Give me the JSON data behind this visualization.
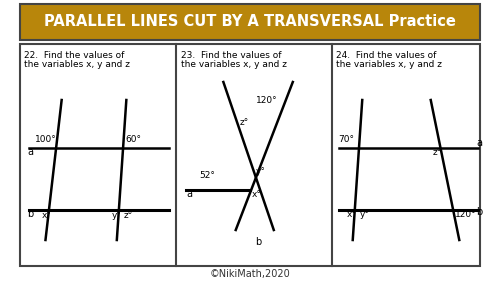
{
  "title": "PARALLEL LINES CUT BY A TRANSVERSAL Practice",
  "title_bg": "#B8860B",
  "title_fg": "white",
  "outer_bg": "white",
  "panel_bg": "white",
  "border_color": "#444444",
  "footer": "©NikiMath,2020",
  "problems": [
    {
      "number": "22.",
      "text": "Find the values of\nthe variables x, y and z"
    },
    {
      "number": "23.",
      "text": "Find the values of\nthe variables x, y and z"
    },
    {
      "number": "24.",
      "text": "Find the values of\nthe variables x, y and z"
    }
  ]
}
